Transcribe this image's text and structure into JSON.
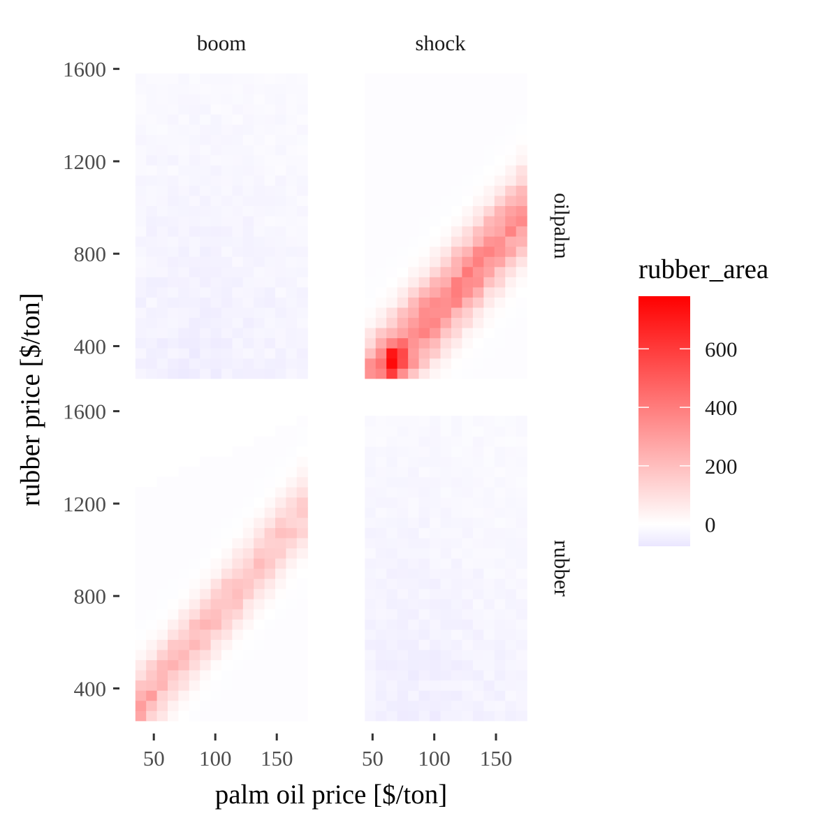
{
  "chart_data": {
    "type": "heatmap",
    "title": "",
    "xlabel": "palm oil price [$/ton]",
    "ylabel": "rubber price [$/ton]",
    "facet_cols": [
      "boom",
      "shock"
    ],
    "facet_rows": [
      "oilpalm",
      "rubber"
    ],
    "x_ticks": [
      50,
      100,
      150
    ],
    "y_ticks": [
      400,
      800,
      1200,
      1600
    ],
    "xlim": [
      30,
      180
    ],
    "ylim": [
      220,
      1620
    ],
    "x_range": [
      35,
      175
    ],
    "y_range": [
      260,
      1580
    ],
    "grid_size": [
      16,
      30
    ],
    "legend": {
      "title": "rubber_area",
      "position": "right",
      "ticks": [
        0,
        200,
        400,
        600
      ],
      "range": [
        -75,
        780
      ],
      "colors": {
        "low": "#eae6ff",
        "mid": "#ffffff",
        "high": "#ff0000"
      }
    },
    "panels": [
      {
        "col": "boom",
        "row": "oilpalm",
        "pattern": "negative",
        "x_start": 35,
        "x_end": 175,
        "y_start": 260,
        "y_end": 1580,
        "y_start_high": 500,
        "summary": "light negative values (about -50 to 0) across the panel, strongest at low palm oil prices and low rubber prices"
      },
      {
        "col": "shock",
        "row": "oilpalm",
        "pattern": "ridge",
        "x_start": 45,
        "x_end": 175,
        "y_start": 260,
        "y_end": 1580,
        "ridge_slope": 6.0,
        "ridge_intercept": -55,
        "ridge_width": 175,
        "ridge_peak": 420,
        "peak_value": 780,
        "peak_location": [
          68,
          330
        ],
        "summary": "diagonal band of positive values rising toward high palm oil and rubber prices, maximum of about 780 near palm oil 68 and rubber 330"
      },
      {
        "col": "boom",
        "row": "rubber",
        "pattern": "ridge",
        "x_start": 35,
        "x_end": 175,
        "y_start": 260,
        "y_end": 1580,
        "y_end_low": 1250,
        "ridge_slope": 6.3,
        "ridge_intercept": 90,
        "ridge_width": 150,
        "ridge_peak": 230,
        "peak_value": 330,
        "peak_location": [
          42,
          330
        ],
        "summary": "diagonal band of moderate positive values (about 100 to 330) rising from low to high prices"
      },
      {
        "col": "shock",
        "row": "rubber",
        "pattern": "negative",
        "x_start": 45,
        "x_end": 175,
        "y_start": 260,
        "y_end": 1580,
        "summary": "light negative values (about -60 to 0) across the panel, mostly for mid rubber prices"
      }
    ]
  }
}
